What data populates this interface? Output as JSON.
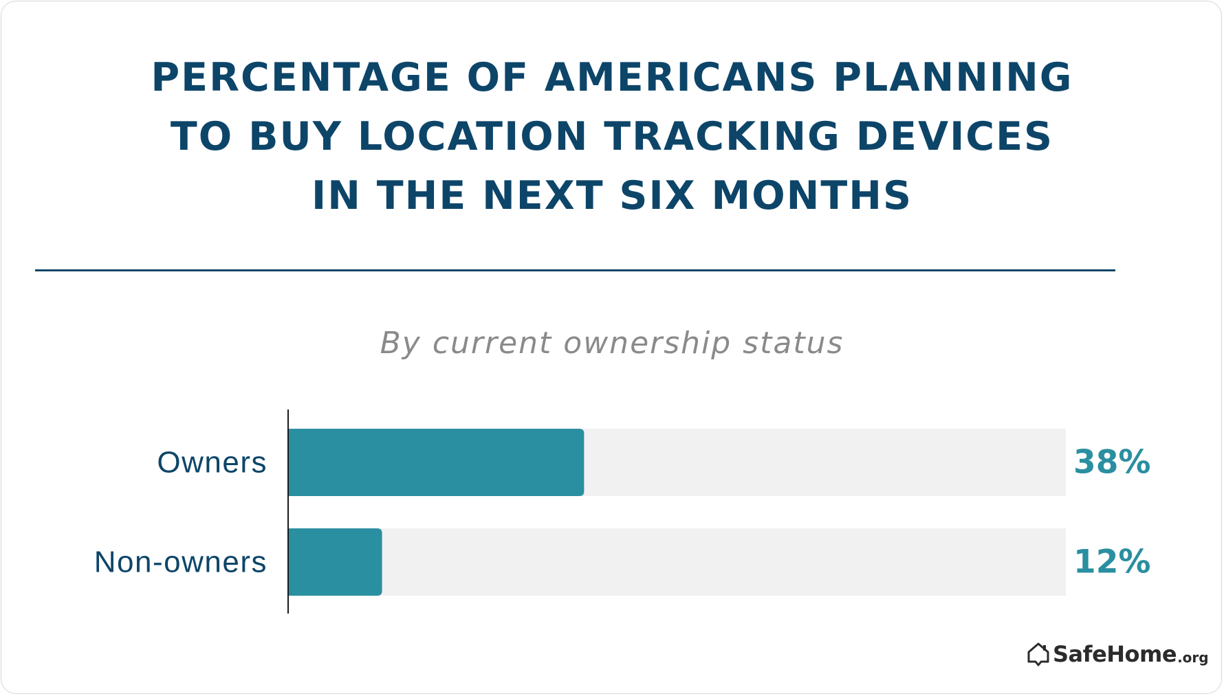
{
  "chart_data": {
    "type": "bar",
    "orientation": "horizontal",
    "title_lines": [
      "PERCENTAGE OF AMERICANS PLANNING",
      "TO BUY LOCATION TRACKING DEVICES",
      "IN THE NEXT SIX MONTHS"
    ],
    "subtitle": "By current ownership status",
    "categories": [
      "Owners",
      "Non-owners"
    ],
    "values": [
      38,
      12
    ],
    "value_labels": [
      "38%",
      "12%"
    ],
    "xlim": [
      0,
      100
    ],
    "grid": false,
    "colors": {
      "bar": "#2a8fa0",
      "track": "#f1f1f1",
      "title": "#0d4569",
      "value_text": "#2a8fa0",
      "subtitle": "#8a8a8a"
    }
  },
  "logo": {
    "name": "SafeHome",
    "suffix": ".org",
    "icon": "house-shield-icon"
  }
}
